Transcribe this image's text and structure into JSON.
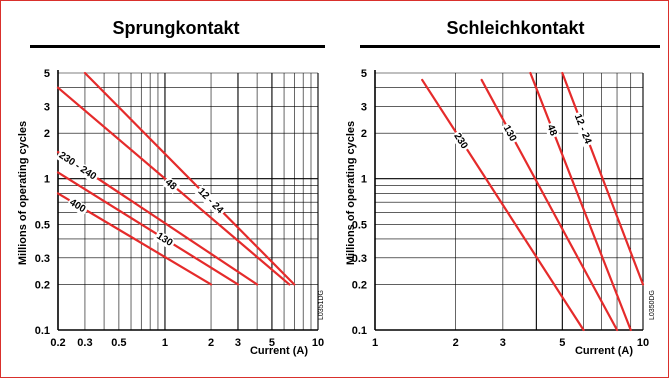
{
  "chart_data": [
    {
      "type": "line",
      "title": "Sprungkontakt",
      "xlabel": "Current (A)",
      "ylabel": "Millions of operating cycles",
      "xscale": "log",
      "yscale": "log",
      "xlim": [
        0.2,
        10
      ],
      "ylim": [
        0.1,
        5
      ],
      "grid": true,
      "xticks": [
        0.2,
        0.3,
        0.5,
        1,
        2,
        3,
        5,
        10
      ],
      "xtick_labels": [
        "0.2",
        "0.3",
        "0.5",
        "1",
        "2",
        "3",
        "5",
        "10"
      ],
      "yticks": [
        0.1,
        0.2,
        0.3,
        0.5,
        1,
        2,
        3,
        5
      ],
      "ytick_labels": [
        "0.1",
        "0.2",
        "0.3",
        "0.5",
        "1",
        "2",
        "3",
        "5"
      ],
      "code": "L0351DG",
      "series": [
        {
          "name": "12 - 24",
          "x": [
            0.3,
            7
          ],
          "y": [
            5,
            0.2
          ],
          "label_at": 2
        },
        {
          "name": "48",
          "x": [
            0.2,
            6.5
          ],
          "y": [
            4,
            0.2
          ],
          "label_at": 1.1
        },
        {
          "name": "230 - 240",
          "x": [
            0.2,
            4
          ],
          "y": [
            1.5,
            0.2
          ],
          "label_at": 0.27
        },
        {
          "name": "130",
          "x": [
            0.2,
            3
          ],
          "y": [
            1.1,
            0.2
          ],
          "label_at": 1
        },
        {
          "name": "400",
          "x": [
            0.2,
            2
          ],
          "y": [
            0.8,
            0.2
          ],
          "label_at": 0.27
        }
      ],
      "colors": {
        "curve": "#e52b2b",
        "grid": "#000000"
      }
    },
    {
      "type": "line",
      "title": "Schleichkontakt",
      "xlabel": "Current (A)",
      "ylabel": "Millions of operating cycles",
      "xscale": "log",
      "yscale": "log",
      "xlim": [
        1,
        10
      ],
      "ylim": [
        0.1,
        5
      ],
      "grid": true,
      "xticks": [
        1,
        2,
        3,
        5,
        10
      ],
      "xtick_labels": [
        "1",
        "2",
        "3",
        "5",
        "10"
      ],
      "yticks": [
        0.1,
        0.2,
        0.3,
        0.5,
        1,
        2,
        3,
        5
      ],
      "ytick_labels": [
        "0.1",
        "0.2",
        "0.3",
        "0.5",
        "1",
        "2",
        "3",
        "5"
      ],
      "code": "L0350DG",
      "series": [
        {
          "name": "230",
          "x": [
            1.5,
            6
          ],
          "y": [
            4.5,
            0.1
          ],
          "label_at": 2.1
        },
        {
          "name": "130",
          "x": [
            2.5,
            8
          ],
          "y": [
            4.5,
            0.1
          ],
          "label_at": 3.2
        },
        {
          "name": "48",
          "x": [
            3.8,
            9
          ],
          "y": [
            5,
            0.1
          ],
          "label_at": 4.6
        },
        {
          "name": "12 - 24",
          "x": [
            5,
            10
          ],
          "y": [
            5,
            0.2
          ],
          "label_at": 6
        }
      ],
      "colors": {
        "curve": "#e52b2b",
        "grid": "#000000"
      }
    }
  ]
}
